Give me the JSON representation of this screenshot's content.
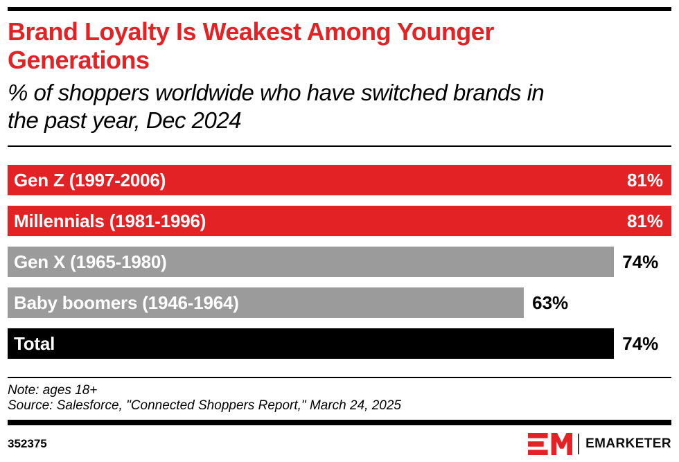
{
  "page": {
    "colors": {
      "accent_red": "#E32226",
      "bar_gray": "#9B9B9B",
      "bar_black": "#000000",
      "background": "#ffffff"
    }
  },
  "header": {
    "title": "Brand Loyalty Is Weakest Among Younger Generations",
    "title_lines": [
      "Brand Loyalty Is Weakest Among Younger",
      "Generations"
    ],
    "subtitle": "% of shoppers worldwide who have switched brands in the past year, Dec 2024",
    "subtitle_lines": [
      "% of shoppers worldwide who have switched brands in",
      "the past year, Dec 2024"
    ]
  },
  "chart_data": {
    "type": "bar",
    "orientation": "horizontal",
    "title": "Brand Loyalty Is Weakest Among Younger Generations",
    "subtitle": "% of shoppers worldwide who have switched brands in the past year, Dec 2024",
    "unit": "%",
    "axis_max": 81,
    "grid": false,
    "legend": "none",
    "categories": [
      "Gen Z (1997-2006)",
      "Millennials (1981-1996)",
      "Gen X (1965-1980)",
      "Baby boomers (1946-1964)",
      "Total"
    ],
    "values": [
      81,
      81,
      74,
      63,
      74
    ],
    "value_labels": [
      "81%",
      "81%",
      "74%",
      "63%",
      "74%"
    ],
    "bar_colors": [
      "#E32226",
      "#E32226",
      "#9B9B9B",
      "#9B9B9B",
      "#000000"
    ],
    "value_label_placement": [
      "inside",
      "inside",
      "outside",
      "outside",
      "outside"
    ]
  },
  "footnote": {
    "note": "Note: ages 18+",
    "source": "Source: Salesforce, \"Connected Shoppers Report,\" March 24, 2025"
  },
  "footer": {
    "chart_id": "352375",
    "brand": "EMARKETER"
  }
}
